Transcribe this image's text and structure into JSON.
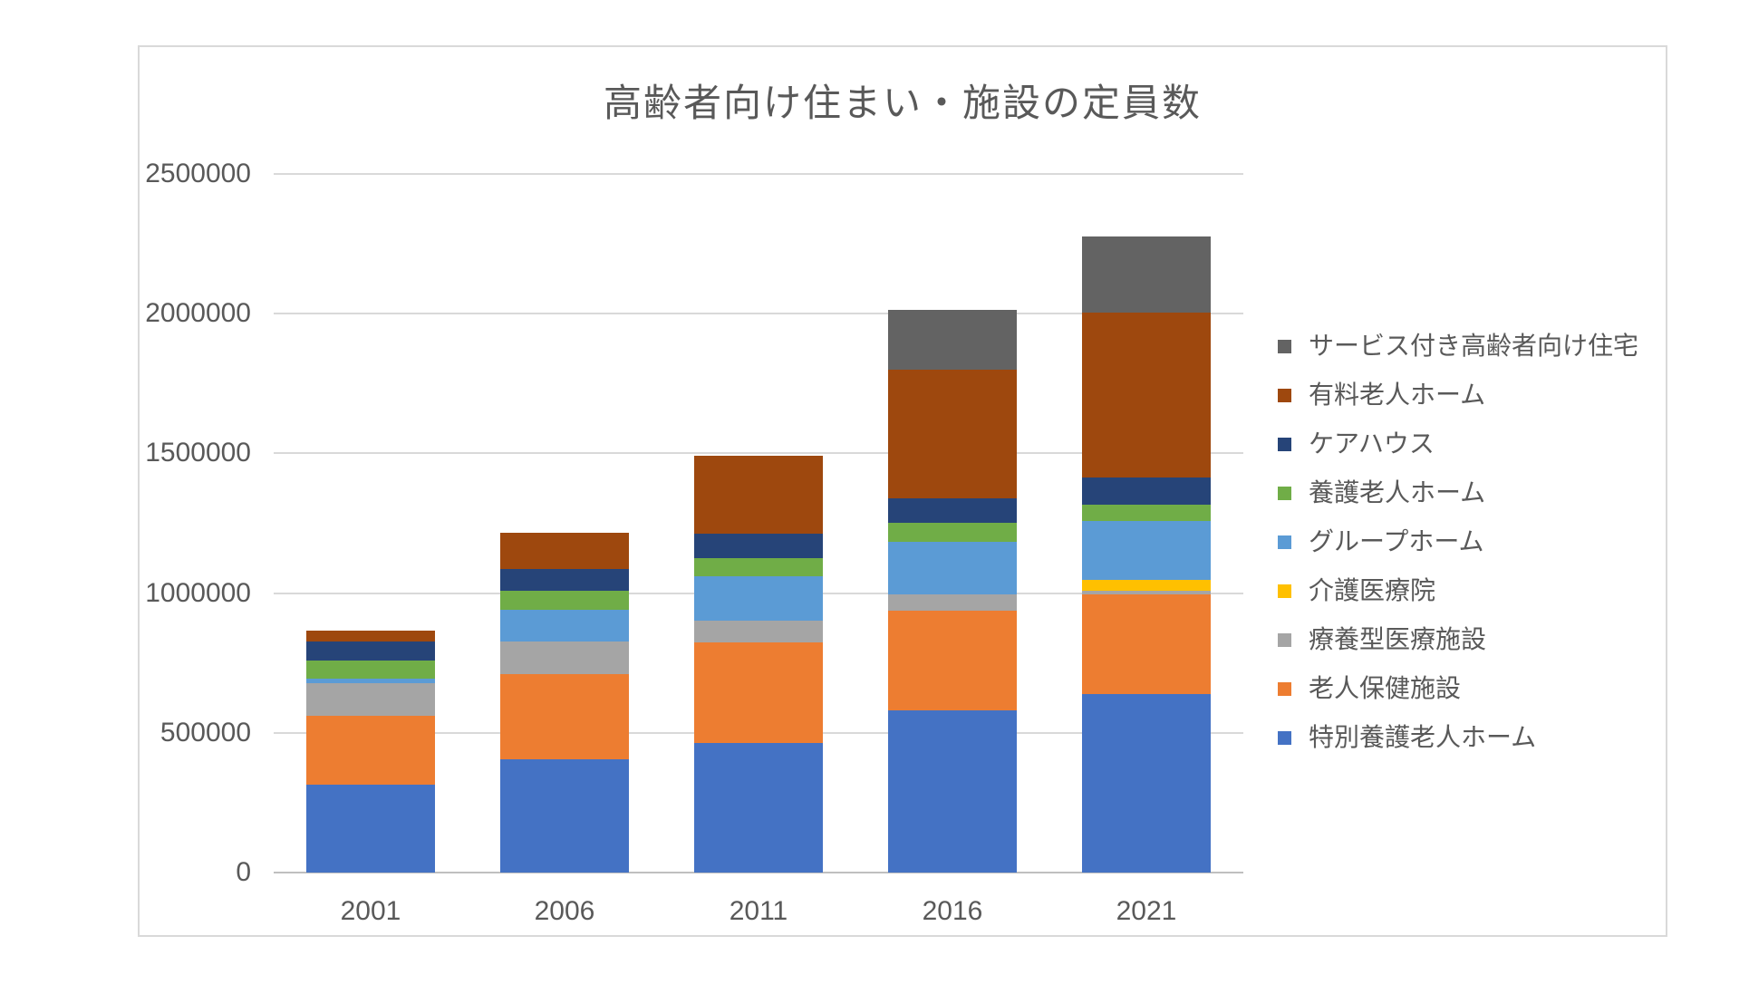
{
  "chart": {
    "title": "高齢者向け住まい・施設の定員数",
    "background": "#ffffff",
    "border_color": "#D9D9D9",
    "text_color": "#595959",
    "gridline_color": "#D9D9D9",
    "axis_line_color": "#BFBFBF"
  },
  "chart_data": {
    "type": "bar",
    "stacked": true,
    "title": "高齢者向け住まい・施設の定員数",
    "categories": [
      "2001",
      "2006",
      "2011",
      "2016",
      "2021"
    ],
    "series": [
      {
        "name": "特別養護老人ホーム",
        "color": "#4472C4",
        "values": [
          313000,
          405000,
          465000,
          580000,
          640000
        ]
      },
      {
        "name": "老人保健施設",
        "color": "#ED7D31",
        "values": [
          248000,
          305000,
          360000,
          358000,
          355000
        ]
      },
      {
        "name": "療養型医療施設",
        "color": "#A5A5A5",
        "values": [
          116000,
          116000,
          78000,
          57000,
          13000
        ]
      },
      {
        "name": "介護医療院",
        "color": "#FFC000",
        "values": [
          0,
          0,
          0,
          0,
          38000
        ]
      },
      {
        "name": "グループホーム",
        "color": "#5B9BD5",
        "values": [
          16000,
          115000,
          158000,
          189000,
          212000
        ]
      },
      {
        "name": "養護老人ホーム",
        "color": "#70AD47",
        "values": [
          65000,
          68000,
          63000,
          67000,
          60000
        ]
      },
      {
        "name": "ケアハウス",
        "color": "#264478",
        "values": [
          70000,
          78000,
          88000,
          89000,
          95000
        ]
      },
      {
        "name": "有料老人ホーム",
        "color": "#9E480E",
        "values": [
          38000,
          130000,
          278000,
          458000,
          590000
        ]
      },
      {
        "name": "サービス付き高齢者向け住宅",
        "color": "#636363",
        "values": [
          0,
          0,
          0,
          214000,
          273000
        ]
      }
    ],
    "totals": [
      866000,
      1217000,
      1490000,
      2012000,
      2276000
    ],
    "y_axis": {
      "min": 0,
      "max": 2500000,
      "step": 500000,
      "tick_labels": [
        "0",
        "500000",
        "1000000",
        "1500000",
        "2000000",
        "2500000"
      ]
    },
    "grid": true,
    "legend_position": "right",
    "legend_order_top_to_bottom": [
      "サービス付き高齢者向け住宅",
      "有料老人ホーム",
      "ケアハウス",
      "養護老人ホーム",
      "グループホーム",
      "介護医療院",
      "療養型医療施設",
      "老人保健施設",
      "特別養護老人ホーム"
    ]
  }
}
